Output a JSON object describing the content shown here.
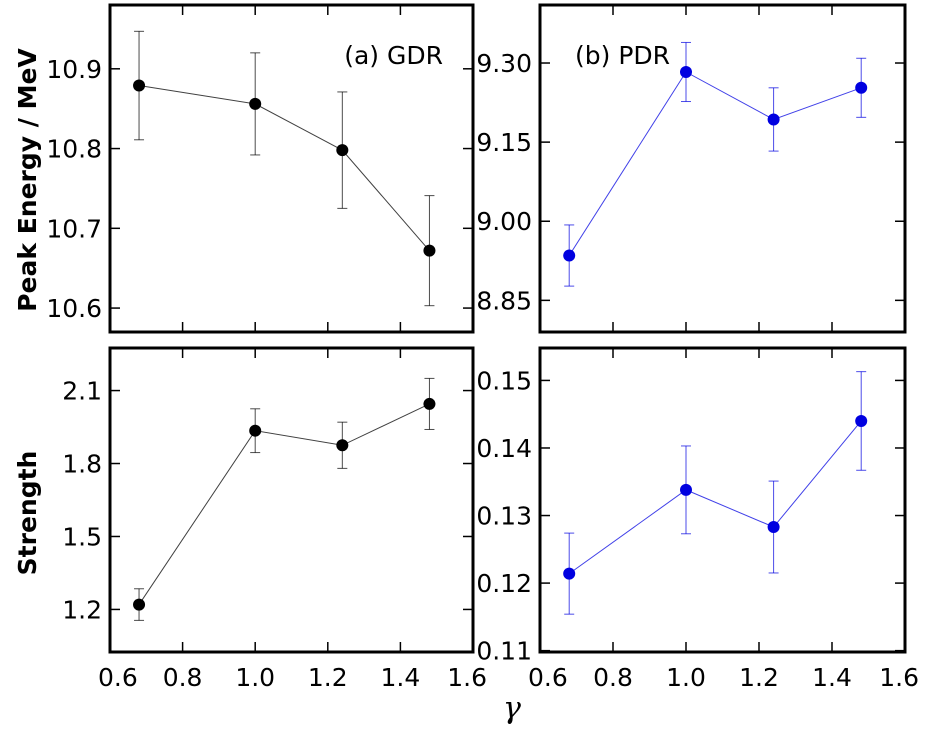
{
  "figure": {
    "ylabel_top": "Peak Energy / MeV",
    "ylabel_bottom": "Strength",
    "xlabel": "γ"
  },
  "chart_data": [
    {
      "id": "gdr-energy",
      "type": "scatter",
      "label": "(a) GDR",
      "color": "#000000",
      "x": [
        0.68,
        1.0,
        1.24,
        1.48
      ],
      "y": [
        10.879,
        10.856,
        10.798,
        10.672
      ],
      "yerr": [
        0.068,
        0.064,
        0.073,
        0.069
      ],
      "xlim": [
        0.6,
        1.6
      ],
      "ylim": [
        10.57,
        10.98
      ],
      "xticks": [
        0.6,
        0.8,
        1.0,
        1.2,
        1.4,
        1.6
      ],
      "xtick_labels": [
        "0.6",
        "0.8",
        "1.0",
        "1.2",
        "1.4",
        "1.6"
      ],
      "yticks": [
        10.6,
        10.7,
        10.8,
        10.9
      ],
      "ytick_labels": [
        "10.6",
        "10.7",
        "10.8",
        "10.9"
      ]
    },
    {
      "id": "pdr-energy",
      "type": "scatter",
      "label": "(b) PDR",
      "color": "#0000e0",
      "x": [
        0.68,
        1.0,
        1.24,
        1.48
      ],
      "y": [
        8.935,
        9.283,
        9.193,
        9.253
      ],
      "yerr": [
        0.058,
        0.056,
        0.06,
        0.056
      ],
      "xlim": [
        0.6,
        1.6
      ],
      "ylim": [
        8.79,
        9.41
      ],
      "xticks": [
        0.6,
        0.8,
        1.0,
        1.2,
        1.4,
        1.6
      ],
      "xtick_labels": [
        "0.6",
        "0.8",
        "1.0",
        "1.2",
        "1.4",
        "1.6"
      ],
      "yticks": [
        8.85,
        9.0,
        9.15,
        9.3
      ],
      "ytick_labels": [
        "8.85",
        "9.00",
        "9.15",
        "9.30"
      ]
    },
    {
      "id": "gdr-strength",
      "type": "scatter",
      "label": "",
      "color": "#000000",
      "x": [
        0.68,
        1.0,
        1.24,
        1.48
      ],
      "y": [
        1.22,
        1.935,
        1.875,
        2.045
      ],
      "yerr": [
        0.065,
        0.09,
        0.095,
        0.105
      ],
      "xlim": [
        0.6,
        1.6
      ],
      "ylim": [
        1.025,
        2.275
      ],
      "xticks": [
        0.6,
        0.8,
        1.0,
        1.2,
        1.4,
        1.6
      ],
      "xtick_labels": [
        "0.6",
        "0.8",
        "1.0",
        "1.2",
        "1.4",
        "1.6"
      ],
      "yticks": [
        1.2,
        1.5,
        1.8,
        2.1
      ],
      "ytick_labels": [
        "1.2",
        "1.5",
        "1.8",
        "2.1"
      ]
    },
    {
      "id": "pdr-strength",
      "type": "scatter",
      "label": "",
      "color": "#0000e0",
      "x": [
        0.68,
        1.0,
        1.24,
        1.48
      ],
      "y": [
        0.1214,
        0.1338,
        0.1283,
        0.144
      ],
      "yerr": [
        0.006,
        0.0065,
        0.0068,
        0.0073
      ],
      "xlim": [
        0.6,
        1.6
      ],
      "ylim": [
        0.1098,
        0.1548
      ],
      "xticks": [
        0.6,
        0.8,
        1.0,
        1.2,
        1.4,
        1.6
      ],
      "xtick_labels": [
        "0.6",
        "0.8",
        "1.0",
        "1.2",
        "1.4",
        "1.6"
      ],
      "yticks": [
        0.11,
        0.12,
        0.13,
        0.14,
        0.15
      ],
      "ytick_labels": [
        "0.11",
        "0.12",
        "0.13",
        "0.14",
        "0.15"
      ]
    }
  ]
}
